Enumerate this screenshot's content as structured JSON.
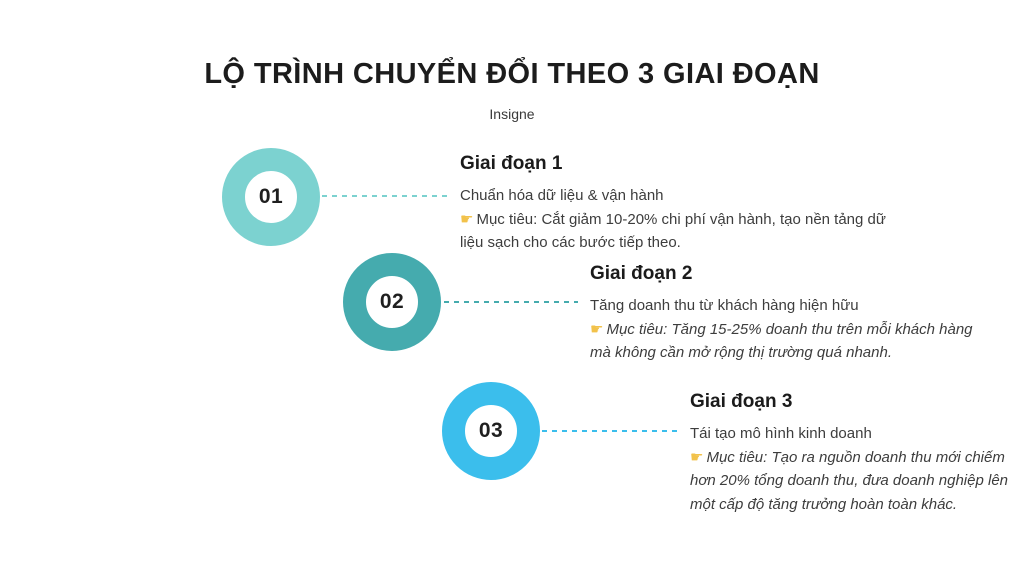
{
  "page": {
    "title": "LỘ TRÌNH CHUYỂN ĐỔI THEO 3 GIAI ĐOẠN",
    "subtitle": "Insigne"
  },
  "icons": {
    "pointer": "☛"
  },
  "colors": {
    "step1": "#7CD2D0",
    "step2": "#45ABAE",
    "step3": "#3BBEEC",
    "pointer_yellow": "#F2C24B"
  },
  "steps": [
    {
      "number": "01",
      "heading": "Giai đoạn 1",
      "description": "Chuẩn hóa dữ liệu & vận hành",
      "goal": "Mục tiêu: Cắt giảm 10-20% chi phí vận hành, tạo nền tảng dữ liệu sạch cho các bước tiếp theo.",
      "goal_italic": false,
      "color": "#7CD2D0"
    },
    {
      "number": "02",
      "heading": "Giai đoạn 2",
      "description": "Tăng doanh thu từ khách hàng hiện hữu",
      "goal": "Mục tiêu: Tăng 15-25% doanh thu trên mỗi khách hàng mà không cần mở rộng thị trường quá nhanh.",
      "goal_italic": true,
      "color": "#45ABAE"
    },
    {
      "number": "03",
      "heading": "Giai đoạn 3",
      "description": "Tái tạo mô hình kinh doanh",
      "goal": "Mục tiêu: Tạo ra nguồn doanh thu mới chiếm hơn 20% tổng doanh thu, đưa doanh nghiệp lên một cấp độ tăng trưởng hoàn toàn khác.",
      "goal_italic": true,
      "color": "#3BBEEC"
    }
  ]
}
